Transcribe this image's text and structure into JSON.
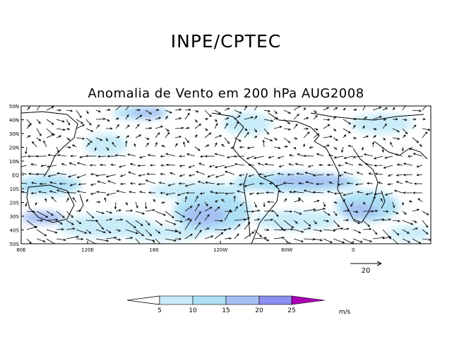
{
  "header": {
    "agency": "INPE/CPTEC",
    "title": "Anomalia de Vento em 200 hPa AUG2008"
  },
  "map": {
    "lat_labels": [
      "50N",
      "40N",
      "30N",
      "20N",
      "10N",
      "EQ",
      "10S",
      "20S",
      "30S",
      "40S",
      "50S"
    ],
    "lon_labels": [
      "120E",
      "180",
      "120W",
      "60W",
      "0",
      "60E"
    ],
    "lon_values": [
      120,
      180,
      -120,
      -60,
      0,
      60
    ],
    "lat_range": [
      -50,
      50
    ],
    "lon_range": [
      60,
      430
    ]
  },
  "reference_vector": {
    "label": "20",
    "value": 20
  },
  "colorbar": {
    "ticks": [
      "5",
      "10",
      "15",
      "20",
      "25"
    ],
    "unit": "m/s",
    "colors": [
      "#ffffff",
      "#c8ecf8",
      "#aee0f5",
      "#a6bff2",
      "#8c8ef0",
      "#4f49e9",
      "#a800b3"
    ]
  },
  "colors": {
    "land": "#000000",
    "frame": "#000000"
  }
}
